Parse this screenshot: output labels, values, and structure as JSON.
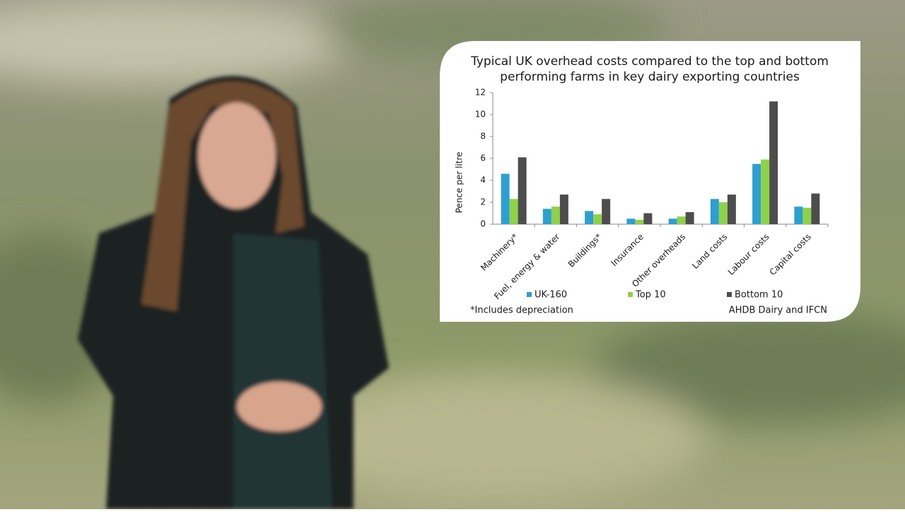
{
  "chart_data": {
    "type": "bar",
    "title": [
      "Typical UK overhead costs compared to the top and bottom",
      "performing farms in key dairy exporting countries"
    ],
    "y_label": "Pence per litre",
    "categories": [
      "Machinery*",
      "Fuel, energy & water",
      "Buildings*",
      "Insurance",
      "Other overheads",
      "Land costs",
      "Labour costs",
      "Capital costs"
    ],
    "series": [
      {
        "name": "UK-160",
        "color": "#2e9fd0",
        "values": [
          4.6,
          1.4,
          1.2,
          0.5,
          0.5,
          2.3,
          5.5,
          1.6
        ]
      },
      {
        "name": "Top 10",
        "color": "#8ed14a",
        "values": [
          2.3,
          1.6,
          0.9,
          0.4,
          0.7,
          2.0,
          5.9,
          1.5
        ]
      },
      {
        "name": "Bottom 10",
        "color": "#4d4d4d",
        "values": [
          6.1,
          2.7,
          2.3,
          1.0,
          1.1,
          2.7,
          11.2,
          2.8
        ]
      }
    ],
    "ylim": [
      0,
      12
    ],
    "yticks": [
      0,
      2,
      4,
      6,
      8,
      10,
      12
    ],
    "legend": "bottom",
    "footnote": "*Includes depreciation",
    "source": "AHDB Dairy and IFCN"
  }
}
